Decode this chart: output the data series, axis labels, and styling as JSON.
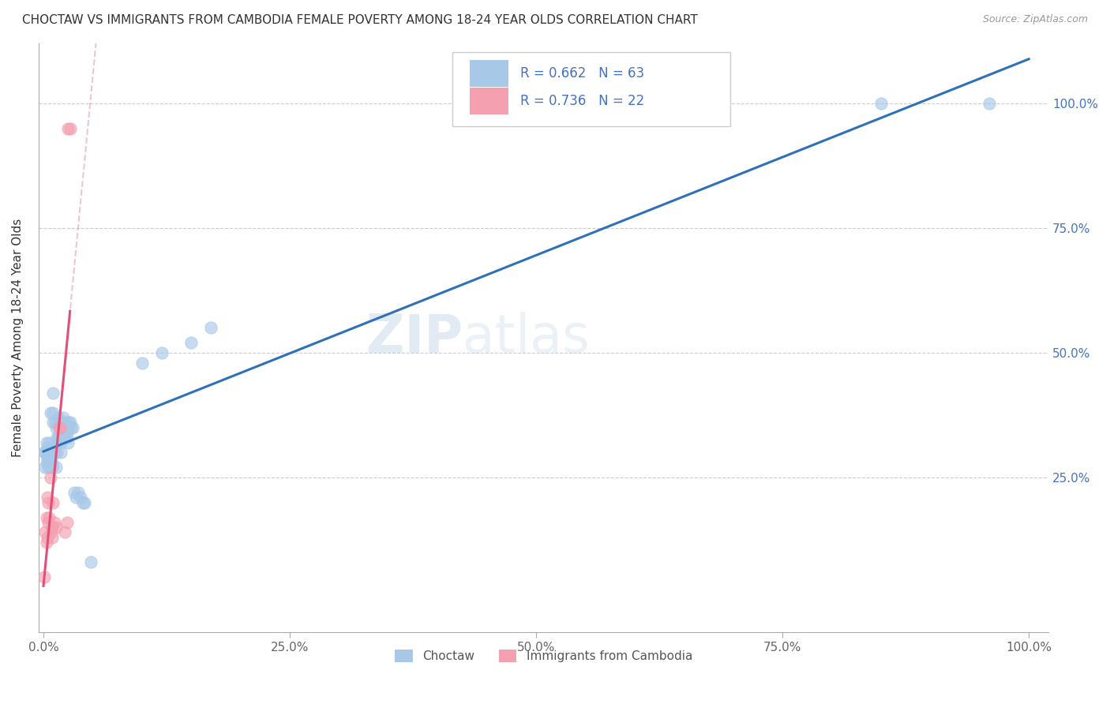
{
  "title": "CHOCTAW VS IMMIGRANTS FROM CAMBODIA FEMALE POVERTY AMONG 18-24 YEAR OLDS CORRELATION CHART",
  "source": "Source: ZipAtlas.com",
  "ylabel": "Female Poverty Among 18-24 Year Olds",
  "watermark": "ZIPatlas",
  "blue_R": 0.662,
  "blue_N": 63,
  "pink_R": 0.736,
  "pink_N": 22,
  "blue_color": "#a8c8e8",
  "pink_color": "#f4a0b0",
  "blue_line_color": "#3070b8",
  "pink_line_color": "#e0507a",
  "pink_dash_color": "#e0a0b8",
  "blue_scatter": [
    [
      0.001,
      0.3
    ],
    [
      0.002,
      0.3
    ],
    [
      0.002,
      0.27
    ],
    [
      0.003,
      0.32
    ],
    [
      0.003,
      0.28
    ],
    [
      0.004,
      0.29
    ],
    [
      0.004,
      0.31
    ],
    [
      0.005,
      0.3
    ],
    [
      0.005,
      0.28
    ],
    [
      0.005,
      0.27
    ],
    [
      0.006,
      0.32
    ],
    [
      0.006,
      0.29
    ],
    [
      0.007,
      0.38
    ],
    [
      0.007,
      0.28
    ],
    [
      0.007,
      0.27
    ],
    [
      0.008,
      0.31
    ],
    [
      0.008,
      0.3
    ],
    [
      0.009,
      0.28
    ],
    [
      0.009,
      0.27
    ],
    [
      0.01,
      0.42
    ],
    [
      0.01,
      0.38
    ],
    [
      0.01,
      0.36
    ],
    [
      0.011,
      0.3
    ],
    [
      0.012,
      0.36
    ],
    [
      0.012,
      0.31
    ],
    [
      0.013,
      0.35
    ],
    [
      0.013,
      0.27
    ],
    [
      0.014,
      0.33
    ],
    [
      0.014,
      0.3
    ],
    [
      0.015,
      0.37
    ],
    [
      0.015,
      0.33
    ],
    [
      0.016,
      0.36
    ],
    [
      0.016,
      0.33
    ],
    [
      0.017,
      0.35
    ],
    [
      0.018,
      0.32
    ],
    [
      0.018,
      0.3
    ],
    [
      0.019,
      0.34
    ],
    [
      0.02,
      0.37
    ],
    [
      0.02,
      0.36
    ],
    [
      0.021,
      0.33
    ],
    [
      0.022,
      0.36
    ],
    [
      0.022,
      0.35
    ],
    [
      0.023,
      0.34
    ],
    [
      0.024,
      0.33
    ],
    [
      0.025,
      0.35
    ],
    [
      0.025,
      0.32
    ],
    [
      0.026,
      0.36
    ],
    [
      0.027,
      0.36
    ],
    [
      0.028,
      0.35
    ],
    [
      0.03,
      0.35
    ],
    [
      0.031,
      0.22
    ],
    [
      0.033,
      0.21
    ],
    [
      0.035,
      0.22
    ],
    [
      0.038,
      0.21
    ],
    [
      0.04,
      0.2
    ],
    [
      0.042,
      0.2
    ],
    [
      0.048,
      0.08
    ],
    [
      0.1,
      0.48
    ],
    [
      0.12,
      0.5
    ],
    [
      0.15,
      0.52
    ],
    [
      0.17,
      0.55
    ],
    [
      0.85,
      1.0
    ],
    [
      0.96,
      1.0
    ]
  ],
  "pink_scatter": [
    [
      0.001,
      0.05
    ],
    [
      0.002,
      0.14
    ],
    [
      0.003,
      0.12
    ],
    [
      0.003,
      0.17
    ],
    [
      0.004,
      0.13
    ],
    [
      0.004,
      0.21
    ],
    [
      0.005,
      0.2
    ],
    [
      0.005,
      0.16
    ],
    [
      0.006,
      0.17
    ],
    [
      0.007,
      0.25
    ],
    [
      0.008,
      0.14
    ],
    [
      0.009,
      0.13
    ],
    [
      0.009,
      0.15
    ],
    [
      0.01,
      0.2
    ],
    [
      0.011,
      0.16
    ],
    [
      0.013,
      0.15
    ],
    [
      0.016,
      0.35
    ],
    [
      0.017,
      0.35
    ],
    [
      0.022,
      0.14
    ],
    [
      0.024,
      0.16
    ],
    [
      0.025,
      0.95
    ],
    [
      0.027,
      0.95
    ]
  ],
  "xlim": [
    -0.005,
    1.02
  ],
  "ylim": [
    -0.06,
    1.12
  ],
  "xticks": [
    0.0,
    0.25,
    0.5,
    0.75,
    1.0
  ],
  "xticklabels": [
    "0.0%",
    "25.0%",
    "50.0%",
    "75.0%",
    "100.0%"
  ],
  "yticks": [
    0.25,
    0.5,
    0.75,
    1.0
  ],
  "yticklabels": [
    "25.0%",
    "50.0%",
    "75.0%",
    "100.0%"
  ],
  "legend_label_blue": "Choctaw",
  "legend_label_pink": "Immigrants from Cambodia"
}
